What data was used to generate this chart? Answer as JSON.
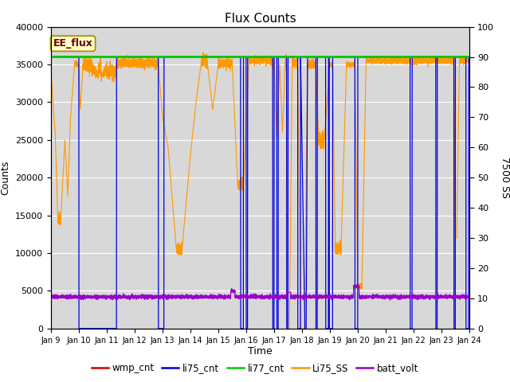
{
  "title": "Flux Counts",
  "xlabel": "Time",
  "ylabel_left": "Counts",
  "ylabel_right": "7500 SS",
  "annotation": "EE_flux",
  "xlim_days": [
    9,
    24
  ],
  "ylim_left": [
    0,
    40000
  ],
  "ylim_right": [
    0,
    100
  ],
  "xtick_labels": [
    "Jan 9",
    "Jan 10",
    "Jan 11",
    "Jan 12",
    "Jan 13",
    "Jan 14",
    "Jan 15",
    "Jan 16",
    "Jan 17",
    "Jan 18",
    "Jan 19",
    "Jan 20",
    "Jan 21",
    "Jan 22",
    "Jan 23",
    "Jan 24"
  ],
  "yticks_left": [
    0,
    5000,
    10000,
    15000,
    20000,
    25000,
    30000,
    35000,
    40000
  ],
  "yticks_right": [
    0,
    10,
    20,
    30,
    40,
    50,
    60,
    70,
    80,
    90,
    100
  ],
  "plot_bg_color": "#d8d8d8",
  "fig_bg_color": "#ffffff",
  "series_colors": {
    "wmp_cnt": "#cc0000",
    "li75_cnt": "#0000dd",
    "li77_cnt": "#00cc00",
    "Li75_SS": "#ff9900",
    "batt_volt": "#9900cc"
  },
  "legend": [
    {
      "label": "wmp_cnt",
      "color": "#cc0000"
    },
    {
      "label": "li75_cnt",
      "color": "#0000dd"
    },
    {
      "label": "li77_cnt",
      "color": "#00cc00"
    },
    {
      "label": "Li75_SS",
      "color": "#ff9900"
    },
    {
      "label": "batt_volt",
      "color": "#9900cc"
    }
  ]
}
